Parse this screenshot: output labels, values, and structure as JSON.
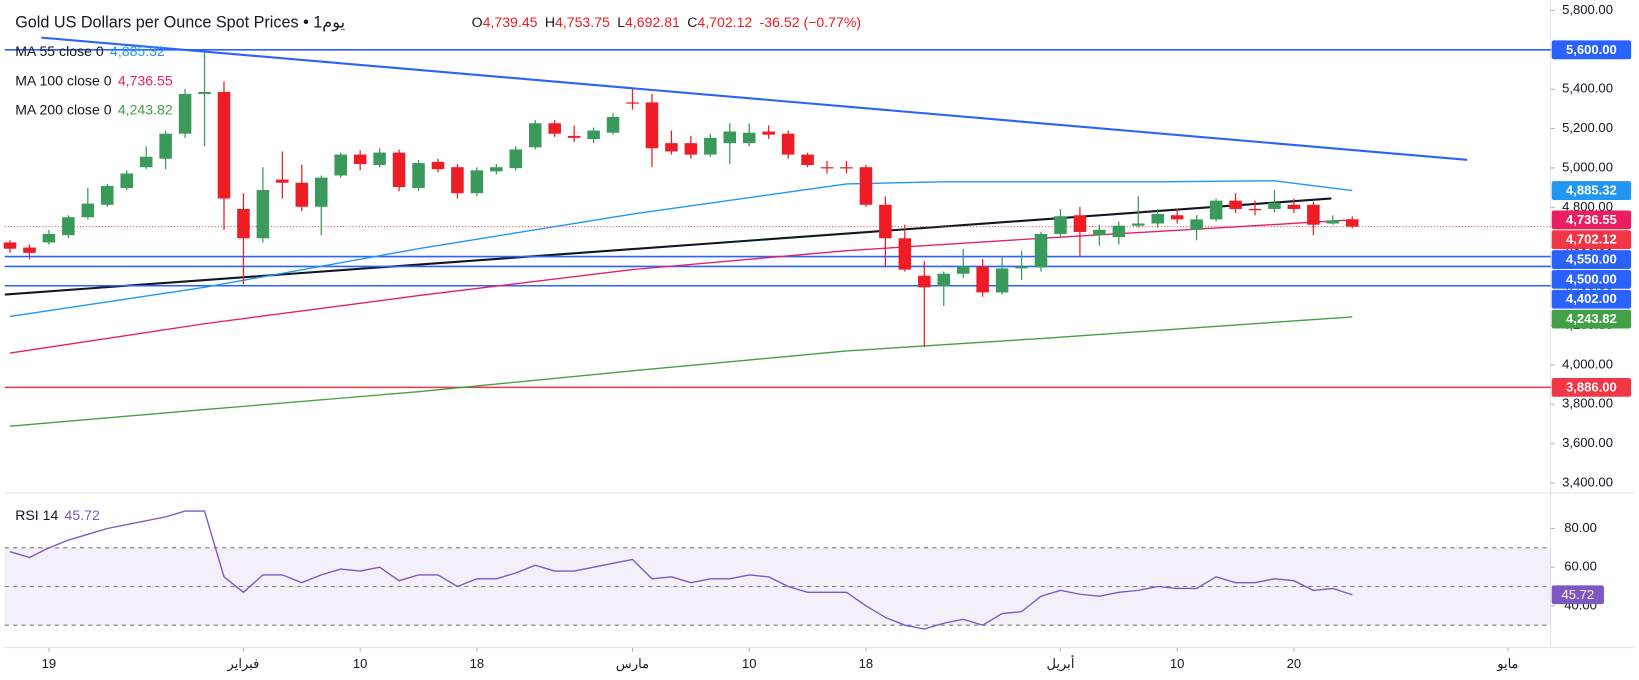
{
  "chart_data": {
    "type": "candlestick",
    "title": "Gold US Dollars per Ounce Spot Prices • 1يوم",
    "ohlc_keys": [
      "O",
      "H",
      "L",
      "C"
    ],
    "ohlc_values": [
      "4,739.45",
      "4,753.75",
      "4,692.81",
      "4,702.12"
    ],
    "change_text": "-36.52 (−0.77%)",
    "up_color": "#3a9a5b",
    "down_color": "#ee1c25",
    "open": [
      4622,
      4596,
      4622,
      4659,
      4750,
      4813,
      4898,
      5004,
      5047,
      5174,
      5376,
      5386,
      4792,
      4643,
      4941,
      4925,
      4803,
      4962,
      5068,
      5015,
      5078,
      4898,
      5031,
      5004,
      4872,
      4983,
      4999,
      5105,
      5227,
      5163,
      5147,
      5179,
      5333,
      5333,
      5126,
      5126,
      5068,
      5126,
      5126,
      5185,
      5174,
      5068,
      5004,
      5004,
      5004,
      4813,
      4643,
      4453,
      4400,
      4463,
      4500,
      4368,
      4490,
      4495,
      4665,
      4760,
      4659,
      4649,
      4707,
      4718,
      4760,
      4686,
      4739,
      4834,
      4792,
      4792,
      4813,
      4813,
      4718,
      4739.45
    ],
    "high": [
      4633,
      4612,
      4686,
      4760,
      4898,
      4919,
      4988,
      5110,
      5190,
      5402,
      5588,
      5439,
      4872,
      5004,
      5084,
      5015,
      4962,
      5078,
      5089,
      5100,
      5094,
      5041,
      5047,
      5020,
      5004,
      5020,
      5110,
      5243,
      5243,
      5216,
      5206,
      5280,
      5402,
      5376,
      5190,
      5163,
      5174,
      5227,
      5227,
      5216,
      5190,
      5078,
      5036,
      5036,
      5015,
      4856,
      4712,
      4527,
      4474,
      4590,
      4537,
      4553,
      4580,
      4675,
      4792,
      4803,
      4712,
      4728,
      4856,
      4792,
      4792,
      4760,
      4845,
      4872,
      4834,
      4888,
      4845,
      4829,
      4760,
      4753.75
    ],
    "low": [
      4569,
      4537,
      4612,
      4643,
      4739,
      4803,
      4888,
      4994,
      4994,
      5153,
      5110,
      4686,
      4410,
      4622,
      4845,
      4781,
      4659,
      4951,
      4988,
      5004,
      4882,
      4882,
      4978,
      4845,
      4856,
      4967,
      4988,
      5094,
      5158,
      5132,
      5126,
      5169,
      5296,
      5004,
      5068,
      5047,
      5057,
      5020,
      5110,
      5147,
      5047,
      5004,
      4972,
      4972,
      4803,
      4495,
      4474,
      4092,
      4299,
      4442,
      4346,
      4357,
      4431,
      4474,
      4643,
      4553,
      4606,
      4612,
      4697,
      4697,
      4718,
      4633,
      4728,
      4771,
      4760,
      4776,
      4771,
      4659,
      4712,
      4692.81
    ],
    "close": [
      4590,
      4569,
      4665,
      4750,
      4819,
      4909,
      4972,
      5057,
      5174,
      5376,
      5386,
      4845,
      4643,
      4888,
      4925,
      4803,
      4951,
      5068,
      5020,
      5078,
      4903,
      5025,
      4994,
      4872,
      4988,
      5004,
      5094,
      5227,
      5174,
      5153,
      5190,
      5259,
      5328,
      5100,
      5084,
      5068,
      5153,
      5185,
      5179,
      5169,
      5068,
      5015,
      4999,
      4999,
      4813,
      4643,
      4484,
      4394,
      4463,
      4500,
      4368,
      4490,
      4500,
      4665,
      4755,
      4675,
      4686,
      4707,
      4718,
      4766,
      4739,
      4739,
      4834,
      4792,
      4787,
      4824,
      4792,
      4712,
      4734,
      4702.12
    ],
    "xlim": [
      -0.27,
      79.2
    ],
    "xticks": [
      {
        "value": 2,
        "label": "19"
      },
      {
        "value": 12,
        "label": "فبراير"
      },
      {
        "value": 18,
        "label": "10"
      },
      {
        "value": 24,
        "label": "18"
      },
      {
        "value": 32,
        "label": "مارس"
      },
      {
        "value": 38,
        "label": "10"
      },
      {
        "value": 44,
        "label": "18"
      },
      {
        "value": 54,
        "label": "أبريل"
      },
      {
        "value": 60,
        "label": "10"
      },
      {
        "value": 66,
        "label": "20"
      },
      {
        "value": 77,
        "label": "مايو"
      }
    ],
    "ylim": [
      3360,
      5853
    ],
    "yticks": [
      {
        "value": 5800,
        "label": "5,800.00"
      },
      {
        "value": 5600,
        "label": "5,600.00"
      },
      {
        "value": 5400,
        "label": "5,400.00"
      },
      {
        "value": 5200,
        "label": "5,200.00"
      },
      {
        "value": 5000,
        "label": "5,000.00"
      },
      {
        "value": 4800,
        "label": "4,800.00"
      },
      {
        "value": 4600,
        "label": "4,600.00"
      },
      {
        "value": 4400,
        "label": "4,400.00"
      },
      {
        "value": 4200,
        "label": "4,200.00"
      },
      {
        "value": 4000,
        "label": "4,000.00"
      },
      {
        "value": 3800,
        "label": "3,800.00"
      },
      {
        "value": 3600,
        "label": "3,600.00"
      },
      {
        "value": 3400,
        "label": "3,400.00"
      }
    ],
    "moving_averages": [
      {
        "name": "MA 55 close 0",
        "color": "#2196f3",
        "x": [
          0,
          10,
          21,
          32,
          43,
          48,
          53,
          59,
          65,
          69
        ],
        "values": [
          4246,
          4394,
          4590,
          4766,
          4919,
          4930,
          4930,
          4930,
          4935,
          4885.32
        ],
        "value_label": "4,885.32"
      },
      {
        "name": "MA 100 close 0",
        "color": "#e91e63",
        "x": [
          0,
          10,
          21,
          32,
          43,
          53,
          64,
          69
        ],
        "values": [
          4060,
          4209,
          4352,
          4484,
          4580,
          4643,
          4707,
          4736.55
        ],
        "value_label": "4,736.55"
      },
      {
        "name": "MA 200 close 0",
        "color": "#43a047",
        "x": [
          0,
          10,
          21,
          32,
          43,
          53,
          69
        ],
        "values": [
          3689,
          3773,
          3864,
          3970,
          4071,
          4134,
          4243.82
        ],
        "value_label": "4,243.82"
      }
    ],
    "levels": [
      {
        "value": 5600,
        "label": "5,600.00",
        "color": "#2962ff"
      },
      {
        "value": 4550,
        "label": "4,550.00",
        "color": "#2962ff"
      },
      {
        "value": 4500,
        "label": "4,500.00",
        "color": "#2962ff"
      },
      {
        "value": 4402,
        "label": "4,402.00",
        "color": "#2962ff"
      },
      {
        "value": 3886,
        "label": "3,886.00",
        "color": "#f23645"
      }
    ],
    "last_price": {
      "value": 4702.12,
      "label": "4,702.12",
      "color": "#f23645"
    },
    "rsi": {
      "name": "RSI 14",
      "color": "#7e57c2",
      "values": [
        68,
        65,
        70,
        74,
        77,
        80,
        82,
        84,
        86,
        89,
        89,
        55,
        47,
        56,
        56,
        52,
        56,
        59,
        58,
        60,
        53,
        56,
        56,
        50,
        54,
        54,
        57,
        61,
        58,
        58,
        60,
        62,
        64,
        54,
        55,
        52,
        54,
        54,
        56,
        55,
        50,
        47,
        47,
        47,
        40,
        34,
        30,
        28,
        31,
        33,
        30,
        36,
        37,
        45,
        48,
        46,
        45,
        47,
        48,
        50,
        49,
        49,
        55,
        52,
        52,
        54,
        53,
        48,
        49,
        45.72
      ],
      "value_label": "45.72",
      "ylim": [
        18.4,
        97.8
      ],
      "yticks": [
        {
          "value": 80,
          "label": "80.00"
        },
        {
          "value": 60,
          "label": "60.00"
        },
        {
          "value": 40,
          "label": "40.00"
        }
      ],
      "bands": [
        70,
        50,
        30
      ]
    }
  }
}
